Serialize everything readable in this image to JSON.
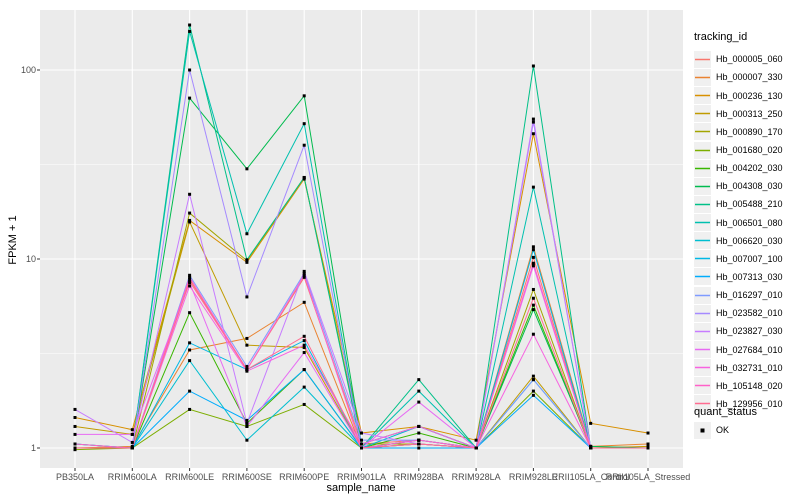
{
  "figure": {
    "background": "#FFFFFF",
    "panel_bg": "#EBEBEB",
    "grid_color": "#FFFFFF",
    "axis_text_color": "#4D4D4D",
    "tick_mark_color": "#333333",
    "marker_color": "#000000"
  },
  "legend": {
    "tracking_title": "tracking_id",
    "quant_title": "quant_status",
    "quant_items": [
      {
        "label": "OK",
        "marker": "black-square"
      }
    ]
  },
  "chart_data": {
    "type": "line",
    "title": "",
    "xlabel": "sample_name",
    "ylabel": "FPKM + 1",
    "y_scale": "log10",
    "ylim": [
      0.8,
      207
    ],
    "y_ticks": [
      100,
      10,
      1
    ],
    "y_tick_labels": [
      "100",
      "10",
      "1"
    ],
    "grid": true,
    "legend_position": "right",
    "point_marker": "small black square (quant_status OK) at every sample for every gene",
    "categories": [
      "PB350LA",
      "RRIM600LA",
      "RRIM600LE",
      "RRIM600SE",
      "RRIM600PE",
      "RRIM901LA",
      "RRIM928BA",
      "RRIM928LA",
      "RRIM928LE",
      "RRII105LA_Control",
      "RRII105LA_Stressed"
    ],
    "series": [
      {
        "name": "Hb_000005_060",
        "color": "#F8766D",
        "values": [
          1.0,
          1.0,
          7.8,
          2.6,
          8.0,
          1.05,
          1.1,
          1.0,
          10.2,
          1.0,
          1.0
        ]
      },
      {
        "name": "Hb_000007_330",
        "color": "#EA8331",
        "values": [
          1.0,
          1.02,
          3.3,
          3.8,
          5.9,
          1.0,
          1.1,
          1.0,
          11.6,
          1.02,
          1.05
        ]
      },
      {
        "name": "Hb_000236_130",
        "color": "#D89000",
        "values": [
          1.45,
          1.25,
          16.0,
          9.6,
          26.5,
          1.2,
          1.3,
          1.1,
          46.0,
          1.35,
          1.2
        ]
      },
      {
        "name": "Hb_000313_250",
        "color": "#C09B00",
        "values": [
          1.3,
          1.18,
          15.7,
          3.5,
          3.4,
          1.0,
          1.05,
          1.0,
          2.4,
          1.0,
          1.02
        ]
      },
      {
        "name": "Hb_000890_170",
        "color": "#A3A500",
        "values": [
          1.0,
          1.0,
          17.5,
          9.8,
          27.0,
          1.05,
          1.05,
          1.0,
          6.9,
          1.0,
          1.0
        ]
      },
      {
        "name": "Hb_001680_020",
        "color": "#7CAE00",
        "values": [
          0.98,
          1.0,
          1.6,
          1.3,
          1.7,
          1.0,
          1.05,
          1.0,
          2.0,
          1.0,
          1.0
        ]
      },
      {
        "name": "Hb_004202_030",
        "color": "#39B600",
        "values": [
          1.0,
          1.0,
          5.2,
          1.35,
          2.6,
          1.0,
          1.2,
          1.0,
          5.7,
          1.0,
          1.0
        ]
      },
      {
        "name": "Hb_004308_030",
        "color": "#00BB4E",
        "values": [
          1.0,
          1.0,
          71.0,
          30.0,
          73.0,
          1.05,
          1.3,
          1.0,
          5.4,
          1.02,
          1.0
        ]
      },
      {
        "name": "Hb_005488_210",
        "color": "#00C087",
        "values": [
          1.05,
          1.0,
          173.0,
          9.9,
          27.0,
          1.0,
          2.3,
          1.0,
          105.0,
          1.0,
          1.0
        ]
      },
      {
        "name": "Hb_006501_080",
        "color": "#00C0AF",
        "values": [
          1.0,
          1.0,
          160.0,
          13.6,
          52.0,
          1.0,
          2.0,
          1.0,
          24.0,
          1.0,
          1.0
        ]
      },
      {
        "name": "Hb_006620_030",
        "color": "#00BED0",
        "values": [
          1.05,
          1.0,
          2.9,
          1.1,
          2.1,
          1.0,
          1.3,
          1.0,
          2.3,
          1.0,
          1.0
        ]
      },
      {
        "name": "Hb_007007_100",
        "color": "#00B8E5",
        "values": [
          1.0,
          1.0,
          3.6,
          2.6,
          3.7,
          1.0,
          1.1,
          1.0,
          11.2,
          1.0,
          1.0
        ]
      },
      {
        "name": "Hb_007313_030",
        "color": "#00ACFC",
        "values": [
          1.0,
          1.0,
          2.0,
          1.4,
          2.6,
          1.0,
          1.0,
          1.0,
          1.9,
          1.0,
          1.0
        ]
      },
      {
        "name": "Hb_016297_010",
        "color": "#7E9BFF",
        "values": [
          1.0,
          1.0,
          8.2,
          2.7,
          8.4,
          1.1,
          1.1,
          1.0,
          2.3,
          1.0,
          1.0
        ]
      },
      {
        "name": "Hb_023582_010",
        "color": "#A58AFF",
        "values": [
          1.0,
          1.0,
          100.0,
          6.3,
          40.0,
          1.0,
          1.05,
          1.0,
          53.0,
          1.0,
          1.0
        ]
      },
      {
        "name": "Hb_023827_030",
        "color": "#C77CFF",
        "values": [
          1.6,
          1.07,
          22.0,
          1.35,
          8.6,
          1.2,
          1.05,
          1.0,
          55.0,
          1.0,
          1.0
        ]
      },
      {
        "name": "Hb_027684_010",
        "color": "#E76BF3",
        "values": [
          1.18,
          1.18,
          7.5,
          1.3,
          3.2,
          1.0,
          1.75,
          1.0,
          9.2,
          1.0,
          1.0
        ]
      },
      {
        "name": "Hb_032731_010",
        "color": "#F763E0",
        "values": [
          1.0,
          1.0,
          7.2,
          2.55,
          3.5,
          1.05,
          1.3,
          1.0,
          4.0,
          1.0,
          1.0
        ]
      },
      {
        "name": "Hb_105148_020",
        "color": "#FF61C9",
        "values": [
          1.05,
          1.0,
          8.0,
          2.6,
          8.2,
          1.0,
          1.1,
          1.0,
          9.5,
          1.0,
          1.0
        ]
      },
      {
        "name": "Hb_129956_010",
        "color": "#FF6C91",
        "values": [
          1.0,
          1.0,
          7.6,
          2.6,
          3.9,
          1.0,
          1.05,
          1.0,
          6.2,
          1.0,
          1.0
        ]
      }
    ]
  }
}
